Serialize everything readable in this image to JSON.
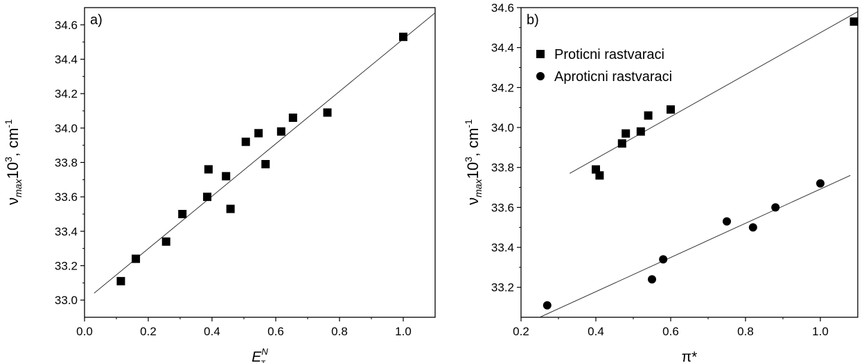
{
  "chart_data": [
    {
      "type": "scatter",
      "panel_label": "a)",
      "xlabel": "E",
      "xlabel_sup": "N",
      "xlabel_sub": "T",
      "ylabel": "ν",
      "ylabel_sub": "max",
      "ylabel_rest": "10",
      "ylabel_sup": "3",
      "ylabel_unit": ", cm",
      "ylabel_unit_sup": "-1",
      "xlim": [
        0.0,
        1.1
      ],
      "ylim": [
        32.9,
        34.7
      ],
      "xticks": [
        0.0,
        0.2,
        0.4,
        0.6,
        0.8,
        1.0
      ],
      "xtick_labels": [
        "0.0",
        "0.2",
        "0.4",
        "0.6",
        "0.8",
        "1.0"
      ],
      "yticks": [
        33.0,
        33.2,
        33.4,
        33.6,
        33.8,
        34.0,
        34.2,
        34.4,
        34.6
      ],
      "ytick_labels": [
        "33.0",
        "33.2",
        "33.4",
        "33.6",
        "33.8",
        "34.0",
        "34.2",
        "34.4",
        "34.6"
      ],
      "series": [
        {
          "marker": "square",
          "x": [
            0.114,
            0.161,
            0.256,
            0.307,
            0.385,
            0.389,
            0.444,
            0.458,
            0.506,
            0.546,
            0.568,
            0.617,
            0.654,
            0.762,
            1.0
          ],
          "y": [
            33.11,
            33.24,
            33.34,
            33.5,
            33.6,
            33.76,
            33.72,
            33.53,
            33.92,
            33.97,
            33.79,
            33.98,
            34.06,
            34.09,
            34.53
          ]
        }
      ],
      "fit_line": {
        "x": [
          0.03,
          1.1
        ],
        "y": [
          33.04,
          34.67
        ]
      }
    },
    {
      "type": "scatter",
      "panel_label": "b)",
      "xlabel": "π*",
      "ylabel": "ν",
      "ylabel_sub": "max",
      "ylabel_rest": "10",
      "ylabel_sup": "3",
      "ylabel_unit": ", cm",
      "ylabel_unit_sup": "-1",
      "xlim": [
        0.2,
        1.1
      ],
      "ylim": [
        33.05,
        34.6
      ],
      "xticks": [
        0.2,
        0.4,
        0.6,
        0.8,
        1.0
      ],
      "xtick_labels": [
        "0.2",
        "0.4",
        "0.6",
        "0.8",
        "1.0"
      ],
      "yticks": [
        33.2,
        33.4,
        33.6,
        33.8,
        34.0,
        34.2,
        34.4,
        34.6
      ],
      "ytick_labels": [
        "33.2",
        "33.4",
        "33.6",
        "33.8",
        "34.0",
        "34.2",
        "34.4",
        "34.6"
      ],
      "legend_position": "top-left",
      "series": [
        {
          "name": "Proticni rastvaraci",
          "marker": "square",
          "x": [
            0.4,
            0.41,
            0.47,
            0.48,
            0.52,
            0.54,
            0.6,
            1.09
          ],
          "y": [
            33.79,
            33.76,
            33.92,
            33.97,
            33.98,
            34.06,
            34.09,
            34.53
          ],
          "fit_line": {
            "x": [
              0.33,
              1.1
            ],
            "y": [
              33.77,
              34.58
            ]
          }
        },
        {
          "name": "Aproticni rastvaraci",
          "marker": "circle",
          "x": [
            0.27,
            0.55,
            0.58,
            0.75,
            0.82,
            0.88,
            1.0
          ],
          "y": [
            33.11,
            33.24,
            33.34,
            33.53,
            33.5,
            33.6,
            33.72
          ],
          "fit_line": {
            "x": [
              0.25,
              1.08
            ],
            "y": [
              33.05,
              33.76
            ]
          }
        }
      ]
    }
  ]
}
